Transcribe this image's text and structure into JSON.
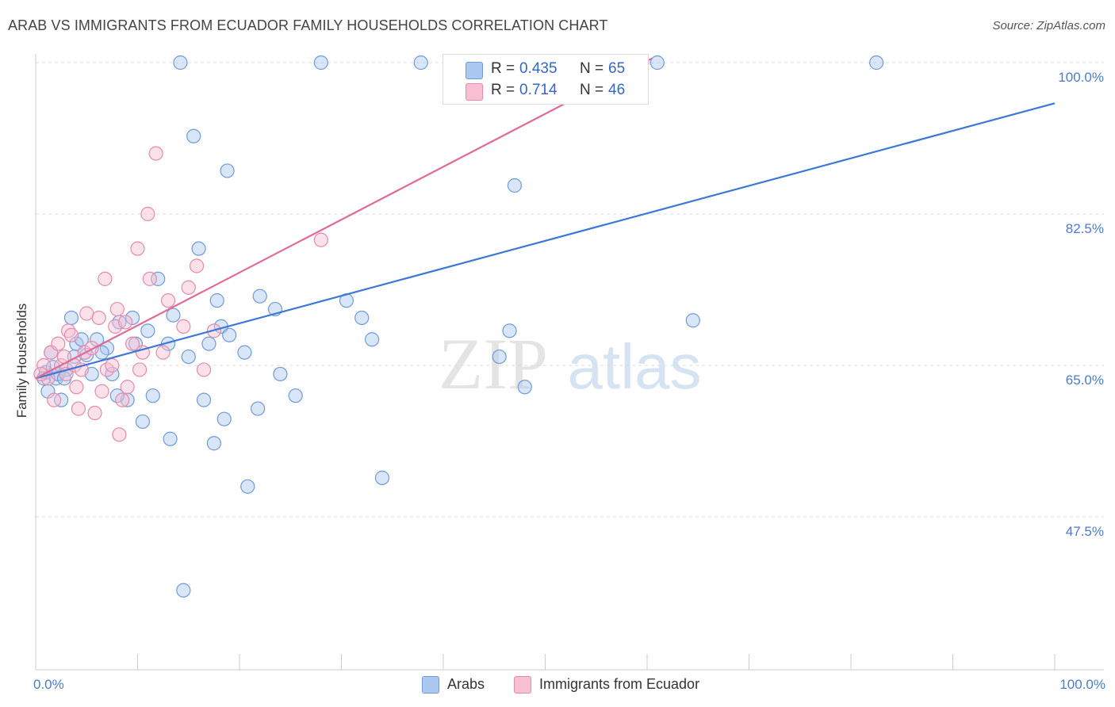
{
  "title": "ARAB VS IMMIGRANTS FROM ECUADOR FAMILY HOUSEHOLDS CORRELATION CHART",
  "source": "Source: ZipAtlas.com",
  "watermark": {
    "zip": "ZIP",
    "atlas": "atlas"
  },
  "colors": {
    "blue_fill": "#aac8f0",
    "blue_stroke": "#6f9ad8",
    "blue_line": "#3d78d6",
    "pink_fill": "#f7bfd1",
    "pink_stroke": "#e58aab",
    "pink_line": "#e06a96",
    "tick_text": "#4a7cc9",
    "grid": "#dddddd"
  },
  "legend": [
    {
      "swatch": "blue",
      "r_label": "R = ",
      "r_value": "0.435",
      "n_label": "N = ",
      "n_value": "65"
    },
    {
      "swatch": "pink",
      "r_label": "R = ",
      "r_value": "0.714",
      "n_label": "N = ",
      "n_value": "46"
    }
  ],
  "bottom_legend": [
    {
      "swatch": "blue",
      "label": "Arabs"
    },
    {
      "swatch": "pink",
      "label": "Immigrants from Ecuador"
    }
  ],
  "chart_data": {
    "type": "scatter",
    "title": "ARAB VS IMMIGRANTS FROM ECUADOR FAMILY HOUSEHOLDS CORRELATION CHART",
    "xlabel": "",
    "ylabel": "Family Households",
    "xlim": [
      0,
      100
    ],
    "ylim": [
      30,
      101.5
    ],
    "x_tick_labels": [
      {
        "value": 0,
        "label": "0.0%"
      },
      {
        "value": 100,
        "label": "100.0%"
      }
    ],
    "y_ticks": [
      {
        "value": 47.5,
        "label": "47.5%"
      },
      {
        "value": 65.0,
        "label": "65.0%"
      },
      {
        "value": 82.5,
        "label": "82.5%"
      },
      {
        "value": 100.0,
        "label": "100.0%"
      }
    ],
    "series": [
      {
        "name": "Arabs",
        "color": "blue",
        "R": 0.435,
        "N": 65,
        "trend": {
          "x0": 0,
          "y0": 63.5,
          "x1": 100,
          "y1": 95.3
        },
        "points": [
          [
            1.2,
            62
          ],
          [
            0.8,
            63.5
          ],
          [
            1.5,
            66.5
          ],
          [
            1.0,
            64.2
          ],
          [
            2.0,
            63.5
          ],
          [
            2.5,
            61
          ],
          [
            3.0,
            64.5
          ],
          [
            2.2,
            64
          ],
          [
            4.0,
            67.5
          ],
          [
            3.5,
            70.5
          ],
          [
            4.5,
            68
          ],
          [
            5.0,
            66.2
          ],
          [
            6.0,
            68
          ],
          [
            7.0,
            67
          ],
          [
            8.2,
            70
          ],
          [
            9.5,
            70.5
          ],
          [
            7.5,
            64
          ],
          [
            9.0,
            61
          ],
          [
            10.5,
            58.5
          ],
          [
            12.0,
            75
          ],
          [
            11.5,
            61.5
          ],
          [
            13.5,
            70.8
          ],
          [
            13.0,
            67.5
          ],
          [
            13.2,
            56.5
          ],
          [
            14.2,
            100
          ],
          [
            14.5,
            39
          ],
          [
            15.5,
            91.5
          ],
          [
            16.0,
            78.5
          ],
          [
            16.5,
            61
          ],
          [
            17.0,
            67.5
          ],
          [
            17.5,
            56
          ],
          [
            17.8,
            72.5
          ],
          [
            18.2,
            69.5
          ],
          [
            18.5,
            58.8
          ],
          [
            18.8,
            87.5
          ],
          [
            19.0,
            68.5
          ],
          [
            20.5,
            66.5
          ],
          [
            20.8,
            51
          ],
          [
            21.8,
            60
          ],
          [
            22.0,
            73
          ],
          [
            23.5,
            71.5
          ],
          [
            25.5,
            61.5
          ],
          [
            28.0,
            100
          ],
          [
            30.5,
            72.5
          ],
          [
            32.0,
            70.5
          ],
          [
            33.0,
            68
          ],
          [
            34.0,
            52
          ],
          [
            37.8,
            100
          ],
          [
            45.5,
            66
          ],
          [
            46.5,
            69
          ],
          [
            47.0,
            85.8
          ],
          [
            48.0,
            62.5
          ],
          [
            61.0,
            100
          ],
          [
            64.5,
            70.2
          ],
          [
            82.5,
            100
          ],
          [
            2.8,
            63.5
          ],
          [
            5.5,
            64
          ],
          [
            6.5,
            66.5
          ],
          [
            8.0,
            61.5
          ],
          [
            9.8,
            67.5
          ],
          [
            11.0,
            69
          ],
          [
            15.0,
            66
          ],
          [
            1.7,
            64.8
          ],
          [
            3.8,
            66
          ],
          [
            24.0,
            64
          ]
        ]
      },
      {
        "name": "Immigrants from Ecuador",
        "color": "pink",
        "R": 0.714,
        "N": 46,
        "trend": {
          "x0": 0,
          "y0": 63.5,
          "x1": 60.5,
          "y1": 100.5
        },
        "points": [
          [
            0.8,
            65
          ],
          [
            1.2,
            63.5
          ],
          [
            1.5,
            66.5
          ],
          [
            1.8,
            61
          ],
          [
            2.2,
            67.5
          ],
          [
            2.5,
            65
          ],
          [
            2.8,
            66
          ],
          [
            3.0,
            64
          ],
          [
            3.2,
            69
          ],
          [
            3.5,
            68.5
          ],
          [
            3.8,
            65
          ],
          [
            4.0,
            62.5
          ],
          [
            4.2,
            60
          ],
          [
            4.5,
            64.5
          ],
          [
            4.8,
            66.5
          ],
          [
            5.0,
            71
          ],
          [
            5.5,
            67
          ],
          [
            5.8,
            59.5
          ],
          [
            6.2,
            70.5
          ],
          [
            6.5,
            62
          ],
          [
            6.8,
            75
          ],
          [
            7.0,
            64.5
          ],
          [
            7.5,
            65
          ],
          [
            7.8,
            69.5
          ],
          [
            8.0,
            71.5
          ],
          [
            8.2,
            57
          ],
          [
            8.5,
            61
          ],
          [
            8.8,
            70
          ],
          [
            9.0,
            62.5
          ],
          [
            9.5,
            67.5
          ],
          [
            10.0,
            78.5
          ],
          [
            10.2,
            64.5
          ],
          [
            10.5,
            66.5
          ],
          [
            11.0,
            82.5
          ],
          [
            11.2,
            75
          ],
          [
            11.8,
            89.5
          ],
          [
            12.5,
            66.5
          ],
          [
            13.0,
            72.5
          ],
          [
            14.5,
            69.5
          ],
          [
            15.0,
            74
          ],
          [
            15.8,
            76.5
          ],
          [
            16.5,
            64.5
          ],
          [
            17.5,
            69
          ],
          [
            28.0,
            79.5
          ],
          [
            59.5,
            100
          ],
          [
            0.5,
            64
          ]
        ]
      }
    ]
  }
}
